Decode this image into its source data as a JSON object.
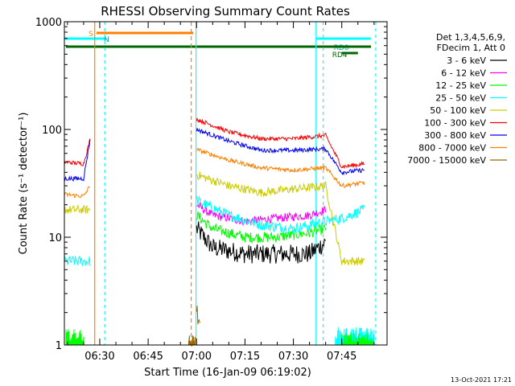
{
  "chart_data": {
    "type": "line",
    "title": "RHESSI Observing Summary Count Rates",
    "ylabel": "Count Rate (s⁻¹ detector⁻¹)",
    "xlabel": "Start Time (16-Jan-09 06:19:02)",
    "timestamp": "13-Oct-2021 17:21",
    "yscale": "log",
    "ylim": [
      1,
      1000
    ],
    "xlim_minutes_after_start": [
      0,
      100
    ],
    "x_ticks": [
      "06:30",
      "06:45",
      "07:00",
      "07:15",
      "07:30",
      "07:45"
    ],
    "y_ticks": [
      "1",
      "10",
      "100",
      "1000"
    ],
    "legend": {
      "placement": "right",
      "header": [
        "Det 1,3,4,5,6,9,",
        "FDecim 1, Att 0"
      ],
      "entries": [
        {
          "label": "3 - 6 keV",
          "color": "#000000"
        },
        {
          "label": "6 - 12 keV",
          "color": "#ff00ff"
        },
        {
          "label": "12 - 25 keV",
          "color": "#00ff00"
        },
        {
          "label": "25 - 50 keV",
          "color": "#00ffff"
        },
        {
          "label": "50 - 100 keV",
          "color": "#cccc00"
        },
        {
          "label": "100 - 300 keV",
          "color": "#ff0000"
        },
        {
          "label": "300 - 800 keV",
          "color": "#0000ff"
        },
        {
          "label": "800 - 7000 keV",
          "color": "#ff8000"
        },
        {
          "label": "7000 - 15000 keV",
          "color": "#996600"
        }
      ]
    },
    "flags": [
      {
        "label": "S",
        "color": "#ff8000",
        "start": "06:29",
        "end": "06:59"
      },
      {
        "label": "N",
        "color": "#00ffff",
        "start": "06:19",
        "end": "06:32"
      },
      {
        "label": "RD0",
        "color": "#00ffff",
        "start": "07:37",
        "end": "07:54"
      },
      {
        "label": "RD4",
        "color": "#006600",
        "start": "07:45",
        "end": "07:50"
      }
    ],
    "series": [
      {
        "name": "3 - 6 keV",
        "x": [
          "07:00",
          "07:05",
          "07:15",
          "07:25",
          "07:35",
          "07:40"
        ],
        "y": [
          12,
          8,
          7,
          7,
          7,
          9
        ]
      },
      {
        "name": "6 - 12 keV",
        "x": [
          "07:00",
          "07:05",
          "07:15",
          "07:25",
          "07:35",
          "07:40"
        ],
        "y": [
          20,
          16,
          14,
          15,
          16,
          18
        ]
      },
      {
        "name": "12 - 25 keV",
        "x": [
          "07:00",
          "07:05",
          "07:15",
          "07:25",
          "07:35",
          "07:40"
        ],
        "y": [
          16,
          12,
          10,
          10,
          11,
          12
        ]
      },
      {
        "name": "25 - 50 keV",
        "x": [
          "06:19",
          "06:25",
          "06:27",
          "07:00",
          "07:10",
          "07:20",
          "07:30",
          "07:40",
          "07:45",
          "07:52"
        ],
        "y": [
          6,
          6,
          6,
          22,
          16,
          13,
          12,
          14,
          15,
          18
        ]
      },
      {
        "name": "50 - 100 keV",
        "x": [
          "06:19",
          "06:25",
          "06:27",
          "07:00",
          "07:10",
          "07:20",
          "07:30",
          "07:40",
          "07:45",
          "07:52"
        ],
        "y": [
          18,
          18,
          18,
          38,
          30,
          26,
          28,
          30,
          6,
          6
        ]
      },
      {
        "name": "100 - 300 keV",
        "x": [
          "06:19",
          "06:25",
          "06:27",
          "07:00",
          "07:10",
          "07:20",
          "07:30",
          "07:40",
          "07:45",
          "07:52"
        ],
        "y": [
          50,
          48,
          80,
          125,
          95,
          82,
          82,
          88,
          45,
          48
        ]
      },
      {
        "name": "300 - 800 keV",
        "x": [
          "06:19",
          "06:25",
          "06:27",
          "07:00",
          "07:10",
          "07:20",
          "07:30",
          "07:40",
          "07:45",
          "07:52"
        ],
        "y": [
          35,
          35,
          80,
          100,
          78,
          64,
          64,
          66,
          40,
          42
        ]
      },
      {
        "name": "800 - 7000 keV",
        "x": [
          "06:19",
          "06:25",
          "06:27",
          "07:00",
          "07:10",
          "07:20",
          "07:30",
          "07:40",
          "07:45",
          "07:52"
        ],
        "y": [
          25,
          24,
          30,
          65,
          52,
          44,
          42,
          44,
          30,
          32
        ]
      },
      {
        "name": "7000 - 15000 keV",
        "x": [
          "07:00",
          "07:01"
        ],
        "y": [
          2,
          1.5
        ]
      }
    ]
  }
}
